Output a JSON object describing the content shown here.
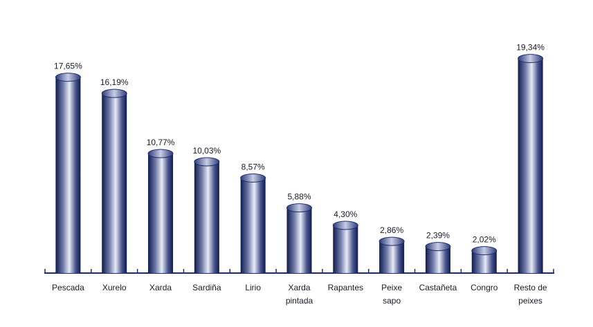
{
  "chart_data": {
    "type": "bar",
    "categories": [
      "Pescada",
      "Xurelo",
      "Xarda",
      "Sardiña",
      "Lirio",
      "Xarda pintada",
      "Rapantes",
      "Peixe sapo",
      "Castañeta",
      "Congro",
      "Resto de peixes"
    ],
    "values": [
      17.65,
      16.19,
      10.77,
      10.03,
      8.57,
      5.88,
      4.3,
      2.86,
      2.39,
      2.02,
      19.34
    ],
    "value_labels": [
      "17,65%",
      "16,19%",
      "10,77%",
      "10,03%",
      "8,57%",
      "5,88%",
      "4,30%",
      "2,86%",
      "2,39%",
      "2,02%",
      "19,34%"
    ],
    "color": "#1c2d6b"
  }
}
